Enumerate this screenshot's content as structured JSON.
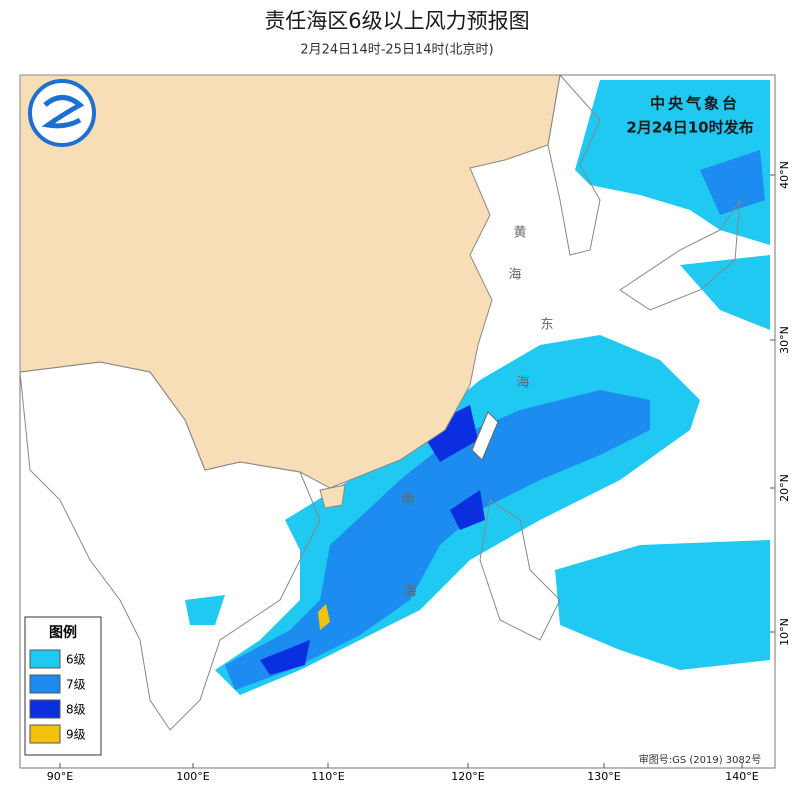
{
  "header": {
    "title": "责任海区6级以上风力预报图",
    "subtitle": "2月24日14时-25日14时(北京时)"
  },
  "issuer": {
    "name": "中央气象台",
    "time": "2月24日10时发布"
  },
  "legend": {
    "title": "图例",
    "items": [
      {
        "label": "6级",
        "color": "#1fc9f1"
      },
      {
        "label": "7级",
        "color": "#1d8cf0"
      },
      {
        "label": "8级",
        "color": "#0b2fe0"
      },
      {
        "label": "9级",
        "color": "#f4c20d"
      }
    ]
  },
  "axes": {
    "longitudes": [
      "90°E",
      "100°E",
      "110°E",
      "120°E",
      "130°E",
      "140°E"
    ],
    "latitudes": [
      "40°N",
      "30°N",
      "20°N",
      "10°N"
    ]
  },
  "sea_labels": [
    [
      "黄",
      "海"
    ],
    [
      "东",
      "海"
    ],
    [
      "南",
      "海"
    ]
  ],
  "footer": {
    "approval": "审图号:GS (2019) 3082号"
  }
}
